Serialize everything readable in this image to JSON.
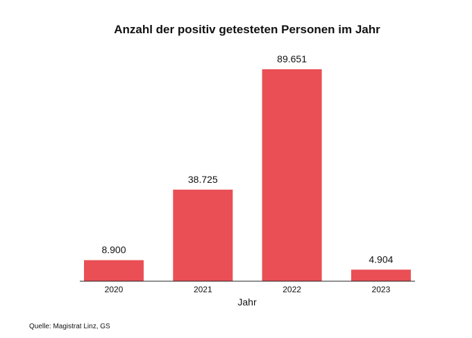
{
  "chart_data": {
    "type": "bar",
    "title": "Anzahl der positiv getesteten Personen im Jahr",
    "xlabel": "Jahr",
    "ylabel": "",
    "categories": [
      "2020",
      "2021",
      "2022",
      "2023"
    ],
    "values": [
      8900,
      38725,
      89651,
      4904
    ],
    "value_labels": [
      "8.900",
      "38.725",
      "89.651",
      "4.904"
    ],
    "ylim": [
      0,
      89651
    ],
    "grid": false,
    "legend": "none",
    "bar_color": "#e94f55",
    "source": "Quelle: Magistrat Linz, GS"
  }
}
